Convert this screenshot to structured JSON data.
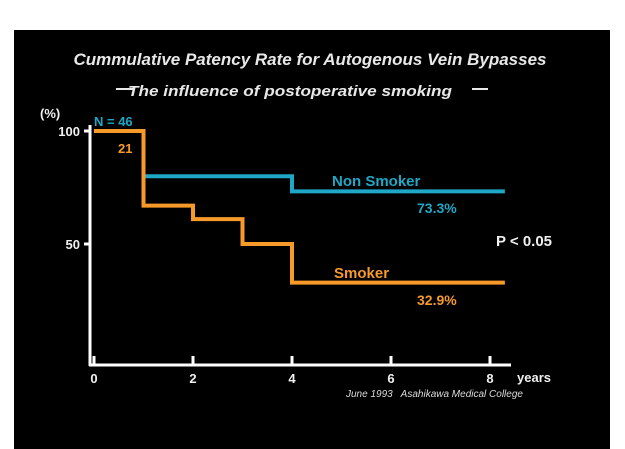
{
  "colors": {
    "background": "#000000",
    "axis": "#ffffff",
    "text": "#e8e8e8",
    "non_smoker": "#1ea7c6",
    "smoker": "#f79a2a"
  },
  "chart_data": {
    "type": "line",
    "step": true,
    "title": "Cummulative Patency Rate for Autogenous Vein Bypasses",
    "subtitle": "The influence of postoperative smoking",
    "ylabel": "(%)",
    "xlabel": "years",
    "xlim": [
      0,
      8
    ],
    "ylim": [
      0,
      100
    ],
    "x_ticks": [
      "0",
      "2",
      "4",
      "6",
      "8"
    ],
    "y_ticks": [
      "100",
      "50"
    ],
    "legend": "none",
    "grid": false,
    "series": [
      {
        "name": "Non Smoker",
        "color": "#1ea7c6",
        "n_label": "N = 46",
        "end_label": "73.3%",
        "points": [
          [
            0,
            100
          ],
          [
            1,
            100
          ],
          [
            1,
            80
          ],
          [
            4,
            80
          ],
          [
            4,
            73.3
          ],
          [
            8.3,
            73.3
          ]
        ]
      },
      {
        "name": "Smoker",
        "color": "#f79a2a",
        "n_label": "21",
        "end_label": "32.9%",
        "points": [
          [
            0,
            100
          ],
          [
            1,
            100
          ],
          [
            1,
            67
          ],
          [
            2,
            67
          ],
          [
            2,
            61
          ],
          [
            3,
            61
          ],
          [
            3,
            50
          ],
          [
            4,
            50
          ],
          [
            4,
            32.9
          ],
          [
            8.3,
            32.9
          ]
        ]
      }
    ],
    "annotation": "P < 0.05",
    "credit": "June 1993   Asahikawa Medical College"
  }
}
